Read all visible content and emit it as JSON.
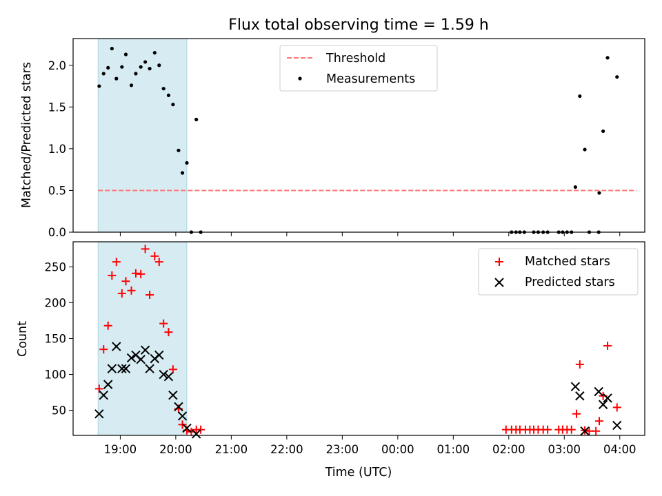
{
  "chart_data": [
    {
      "type": "scatter",
      "title": "Flux total observing time = 1.59 h",
      "ylabel": "Matched/Predicted stars",
      "xlabel": "",
      "x_unit": "hours since 19:00 UTC",
      "xlim": [
        -0.85,
        9.45
      ],
      "ylim": [
        0.0,
        2.32
      ],
      "yticks": [
        "0.0",
        "0.5",
        "1.0",
        "1.5",
        "2.0"
      ],
      "ytick_values": [
        0.0,
        0.5,
        1.0,
        1.5,
        2.0
      ],
      "shaded_interval": [
        -0.4,
        1.2
      ],
      "legend": {
        "position": "top-center"
      },
      "threshold": {
        "name": "Threshold",
        "y": 0.5,
        "x_range": [
          -0.4,
          9.3
        ],
        "color": "#ff7777"
      },
      "series": [
        {
          "name": "Measurements",
          "color": "#000000",
          "points": [
            [
              -0.38,
              1.75
            ],
            [
              -0.3,
              1.9
            ],
            [
              -0.22,
              1.97
            ],
            [
              -0.15,
              2.2
            ],
            [
              -0.07,
              1.84
            ],
            [
              0.03,
              1.98
            ],
            [
              0.1,
              2.13
            ],
            [
              0.2,
              1.76
            ],
            [
              0.28,
              1.9
            ],
            [
              0.37,
              1.98
            ],
            [
              0.45,
              2.04
            ],
            [
              0.53,
              1.96
            ],
            [
              0.62,
              2.15
            ],
            [
              0.7,
              2.0
            ],
            [
              0.78,
              1.72
            ],
            [
              0.87,
              1.64
            ],
            [
              0.95,
              1.53
            ],
            [
              1.05,
              0.98
            ],
            [
              1.12,
              0.71
            ],
            [
              1.2,
              0.83
            ],
            [
              1.28,
              0.0
            ],
            [
              1.37,
              1.35
            ],
            [
              1.45,
              0.0
            ],
            [
              7.05,
              0.0
            ],
            [
              7.13,
              0.0
            ],
            [
              7.2,
              0.0
            ],
            [
              7.28,
              0.0
            ],
            [
              7.45,
              0.0
            ],
            [
              7.53,
              0.0
            ],
            [
              7.62,
              0.0
            ],
            [
              7.7,
              0.0
            ],
            [
              7.9,
              0.0
            ],
            [
              7.97,
              0.0
            ],
            [
              8.05,
              0.0
            ],
            [
              8.13,
              0.0
            ],
            [
              8.2,
              0.54
            ],
            [
              8.28,
              1.63
            ],
            [
              8.37,
              0.99
            ],
            [
              8.45,
              0.0
            ],
            [
              8.62,
              0.0
            ],
            [
              8.63,
              0.47
            ],
            [
              8.7,
              1.21
            ],
            [
              8.78,
              2.09
            ],
            [
              8.95,
              1.86
            ]
          ]
        }
      ]
    },
    {
      "type": "scatter",
      "title": "",
      "xlabel": "Time (UTC)",
      "ylabel": "Count",
      "x_unit": "hours since 19:00 UTC",
      "xlim": [
        -0.85,
        9.45
      ],
      "ylim": [
        15,
        285
      ],
      "xticks": [
        "19:00",
        "20:00",
        "21:00",
        "22:00",
        "23:00",
        "00:00",
        "01:00",
        "02:00",
        "03:00",
        "04:00"
      ],
      "xtick_values": [
        0,
        1,
        2,
        3,
        4,
        5,
        6,
        7,
        8,
        9
      ],
      "yticks": [
        "50",
        "100",
        "150",
        "200",
        "250"
      ],
      "ytick_values": [
        50,
        100,
        150,
        200,
        250
      ],
      "shaded_interval": [
        -0.4,
        1.2
      ],
      "legend": {
        "position": "top-right"
      },
      "series": [
        {
          "name": "Matched stars",
          "marker": "+",
          "color": "#ff0000",
          "points": [
            [
              -0.38,
              80
            ],
            [
              -0.3,
              135
            ],
            [
              -0.22,
              168
            ],
            [
              -0.15,
              238
            ],
            [
              -0.07,
              257
            ],
            [
              0.03,
              213
            ],
            [
              0.1,
              230
            ],
            [
              0.2,
              217
            ],
            [
              0.28,
              241
            ],
            [
              0.37,
              240
            ],
            [
              0.45,
              275
            ],
            [
              0.53,
              211
            ],
            [
              0.62,
              265
            ],
            [
              0.7,
              257
            ],
            [
              0.78,
              171
            ],
            [
              0.87,
              159
            ],
            [
              0.95,
              107
            ],
            [
              1.05,
              52
            ],
            [
              1.12,
              30
            ],
            [
              1.2,
              22
            ],
            [
              1.28,
              20
            ],
            [
              1.37,
              23
            ],
            [
              1.45,
              23
            ],
            [
              6.95,
              23
            ],
            [
              7.05,
              23
            ],
            [
              7.13,
              23
            ],
            [
              7.2,
              23
            ],
            [
              7.3,
              23
            ],
            [
              7.38,
              23
            ],
            [
              7.45,
              23
            ],
            [
              7.53,
              23
            ],
            [
              7.62,
              23
            ],
            [
              7.7,
              23
            ],
            [
              7.9,
              23
            ],
            [
              7.97,
              23
            ],
            [
              8.05,
              23
            ],
            [
              8.13,
              23
            ],
            [
              8.22,
              45
            ],
            [
              8.28,
              114
            ],
            [
              8.37,
              22
            ],
            [
              8.45,
              21
            ],
            [
              8.57,
              21
            ],
            [
              8.63,
              35
            ],
            [
              8.7,
              70
            ],
            [
              8.78,
              140
            ],
            [
              8.95,
              54
            ]
          ]
        },
        {
          "name": "Predicted stars",
          "marker": "x",
          "color": "#000000",
          "points": [
            [
              -0.38,
              45
            ],
            [
              -0.3,
              71
            ],
            [
              -0.22,
              86
            ],
            [
              -0.15,
              108
            ],
            [
              -0.07,
              139
            ],
            [
              0.03,
              108
            ],
            [
              0.1,
              108
            ],
            [
              0.2,
              123
            ],
            [
              0.28,
              127
            ],
            [
              0.37,
              121
            ],
            [
              0.45,
              134
            ],
            [
              0.53,
              108
            ],
            [
              0.62,
              122
            ],
            [
              0.7,
              127
            ],
            [
              0.78,
              100
            ],
            [
              0.87,
              97
            ],
            [
              0.95,
              71
            ],
            [
              1.05,
              55
            ],
            [
              1.12,
              42
            ],
            [
              1.2,
              25
            ],
            [
              1.37,
              17
            ],
            [
              8.2,
              83
            ],
            [
              8.28,
              70
            ],
            [
              8.37,
              21
            ],
            [
              8.62,
              76
            ],
            [
              8.7,
              58
            ],
            [
              8.78,
              67
            ],
            [
              8.95,
              29
            ]
          ]
        }
      ]
    }
  ]
}
